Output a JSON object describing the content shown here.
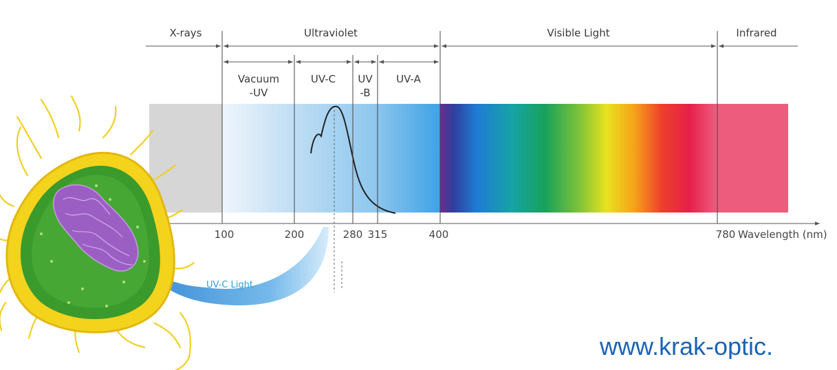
{
  "diagram": {
    "regions": [
      {
        "label": "X-rays"
      },
      {
        "label": "Ultraviolet"
      },
      {
        "label": "Visible Light"
      },
      {
        "label": "Infrared"
      }
    ],
    "uv_subbands": [
      {
        "label": [
          "Vacuum",
          "-UV"
        ]
      },
      {
        "label": [
          "UV-C"
        ]
      },
      {
        "label": [
          "UV",
          "-B"
        ]
      },
      {
        "label": [
          "UV-A"
        ]
      }
    ],
    "ticks": [
      "100",
      "200",
      "280",
      "315",
      "400",
      "780"
    ],
    "axis_label": "Wavelength (nm)",
    "arrow_label": "UV-C Light",
    "colors": {
      "xray_band": "#d6d6d6",
      "uv_light": "#e4f0fb",
      "uv_mid": "#8ec7ee",
      "uv_deep": "#3fa2e6",
      "infrared": "#ee5c7d",
      "uvc_arrow": "#2e8fd8",
      "bacterium_outer": "#f4d31c",
      "bacterium_inner": "#3a9a2c",
      "nucleoid": "#9b5fc4"
    },
    "icons": [
      "bacterium-illustration",
      "uv-c-curved-arrow",
      "germicidal-curve"
    ]
  },
  "footer": {
    "website": "www.krak-optic."
  }
}
